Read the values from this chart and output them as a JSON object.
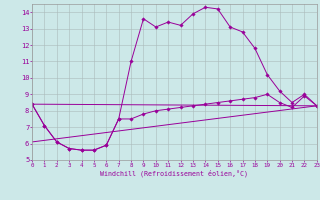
{
  "xlabel": "Windchill (Refroidissement éolien,°C)",
  "xlim": [
    0,
    23
  ],
  "ylim": [
    5,
    14.5
  ],
  "xticks": [
    0,
    1,
    2,
    3,
    4,
    5,
    6,
    7,
    8,
    9,
    10,
    11,
    12,
    13,
    14,
    15,
    16,
    17,
    18,
    19,
    20,
    21,
    22,
    23
  ],
  "yticks": [
    5,
    6,
    7,
    8,
    9,
    10,
    11,
    12,
    13,
    14
  ],
  "background_color": "#cce8e8",
  "line_color": "#990099",
  "grid_color": "#aabbbb",
  "main_curve": [
    [
      0,
      8.4
    ],
    [
      1,
      7.1
    ],
    [
      2,
      6.1
    ],
    [
      3,
      5.7
    ],
    [
      4,
      5.6
    ],
    [
      5,
      5.6
    ],
    [
      6,
      5.9
    ],
    [
      7,
      7.5
    ],
    [
      8,
      11.0
    ],
    [
      9,
      13.6
    ],
    [
      10,
      13.1
    ],
    [
      11,
      13.4
    ],
    [
      12,
      13.2
    ],
    [
      13,
      13.9
    ],
    [
      14,
      14.3
    ],
    [
      15,
      14.2
    ],
    [
      16,
      13.1
    ],
    [
      17,
      12.8
    ],
    [
      18,
      11.8
    ],
    [
      19,
      10.2
    ],
    [
      20,
      9.2
    ],
    [
      21,
      8.5
    ],
    [
      22,
      9.0
    ],
    [
      23,
      8.3
    ]
  ],
  "lower_curve": [
    [
      0,
      8.4
    ],
    [
      1,
      7.1
    ],
    [
      2,
      6.1
    ],
    [
      3,
      5.7
    ],
    [
      4,
      5.6
    ],
    [
      5,
      5.6
    ],
    [
      6,
      5.9
    ],
    [
      7,
      7.5
    ],
    [
      8,
      7.5
    ],
    [
      9,
      7.8
    ],
    [
      10,
      8.0
    ],
    [
      11,
      8.1
    ],
    [
      12,
      8.2
    ],
    [
      13,
      8.3
    ],
    [
      14,
      8.4
    ],
    [
      15,
      8.5
    ],
    [
      16,
      8.6
    ],
    [
      17,
      8.7
    ],
    [
      18,
      8.8
    ],
    [
      19,
      9.0
    ],
    [
      20,
      8.5
    ],
    [
      21,
      8.2
    ],
    [
      22,
      8.9
    ],
    [
      23,
      8.3
    ]
  ],
  "straight_line1": [
    [
      0,
      8.4
    ],
    [
      23,
      8.3
    ]
  ],
  "straight_line2": [
    [
      0,
      6.1
    ],
    [
      23,
      8.3
    ]
  ]
}
